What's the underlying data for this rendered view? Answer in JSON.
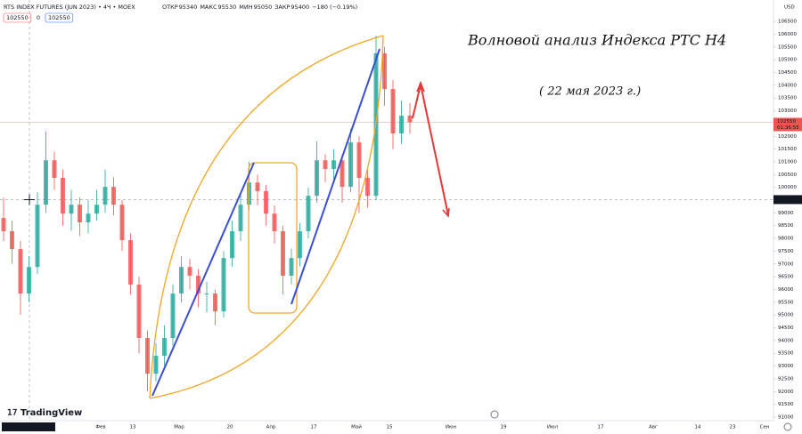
{
  "header": {
    "symbol": "RTS INDEX FUTURES (JUN 2023) • 4Ч • MOEX",
    "ohlc": [
      {
        "label": "ОТКР",
        "value": 95340
      },
      {
        "label": "МАКС",
        "value": 95530
      },
      {
        "label": "МИН",
        "value": 95050
      },
      {
        "label": "ЗАКР",
        "value": 95400
      }
    ],
    "change": "−180 (−0.19%)",
    "badges": [
      102550,
      0,
      102550
    ]
  },
  "chart_data": {
    "type": "candlestick",
    "annotation_title": "Волновой анализ Индекса РТС Н4",
    "annotation_date": "( 22 мая 2023 г.)",
    "open": [
      98800,
      98280,
      97580,
      95840,
      96880,
      99320,
      101060,
      100370,
      98970,
      99320,
      98630,
      98970,
      99320,
      100020,
      99320,
      97930,
      96190,
      94100,
      92700,
      93400,
      94100,
      95840,
      96880,
      96540,
      95840,
      95840,
      95140,
      97230,
      98280,
      99320,
      100190,
      99850,
      98970,
      98280,
      96540,
      97230,
      98280,
      99670,
      101060,
      100720,
      101060,
      100020,
      101760,
      100370,
      99670,
      105250,
      103850,
      102110,
      102810
    ],
    "high": [
      99600,
      98700,
      97900,
      97300,
      99800,
      102200,
      101400,
      100700,
      99900,
      99600,
      99500,
      99900,
      100700,
      100400,
      99500,
      98200,
      96500,
      94400,
      93900,
      94600,
      96200,
      97300,
      97200,
      96800,
      96300,
      96000,
      97500,
      98700,
      99700,
      101000,
      100500,
      100100,
      99300,
      98500,
      97600,
      98600,
      100000,
      101800,
      101300,
      101500,
      101300,
      102300,
      102000,
      100700,
      105940,
      105500,
      104200,
      103400,
      103300
    ],
    "low": [
      97900,
      97000,
      95000,
      95500,
      96600,
      99000,
      99900,
      98500,
      98300,
      98100,
      98200,
      98700,
      99000,
      98900,
      97500,
      95800,
      93500,
      92000,
      92400,
      93000,
      93800,
      95500,
      96000,
      95300,
      95100,
      94600,
      94900,
      96900,
      97900,
      99100,
      99300,
      98500,
      97800,
      95800,
      96200,
      96900,
      98000,
      99400,
      100200,
      100300,
      99400,
      99800,
      99000,
      99200,
      99500,
      103200,
      101500,
      101700,
      102100
    ],
    "close": [
      98280,
      97580,
      95840,
      96880,
      99320,
      101060,
      100370,
      98970,
      99320,
      98630,
      98970,
      99320,
      100020,
      99320,
      97930,
      96190,
      94100,
      92700,
      93400,
      94100,
      95840,
      96880,
      96540,
      95840,
      95840,
      95140,
      97230,
      98280,
      99320,
      100190,
      99850,
      98970,
      98280,
      96540,
      97230,
      98280,
      99670,
      101060,
      100720,
      101060,
      100020,
      101760,
      100370,
      99670,
      105250,
      103850,
      102110,
      102810,
      102550
    ],
    "up_color": "#26a69a",
    "down_color": "#ef5350",
    "ylim": [
      90860,
      107340
    ],
    "yticks": [
      91000,
      91500,
      92000,
      92500,
      93000,
      93500,
      94000,
      94500,
      95000,
      95500,
      96000,
      96500,
      97000,
      97500,
      98000,
      98500,
      99000,
      99500,
      100000,
      100500,
      101000,
      101500,
      102000,
      102500,
      103000,
      103500,
      104000,
      104500,
      105000,
      105500,
      106000,
      106500
    ],
    "x_labels": [
      "Фев",
      "13",
      "Мар",
      "20",
      "Апр",
      "17",
      "Май",
      "15",
      "Июн",
      "19",
      "Июл",
      "17",
      "Авг",
      "14",
      "23",
      "Сен"
    ],
    "currency": "USD",
    "last_price": 102550,
    "countdown": "01:36:55",
    "crosshair_price": 99520,
    "crosshair_time": "пт 06 Янв '23 15:00",
    "grid": false
  },
  "brand": "TradingView"
}
